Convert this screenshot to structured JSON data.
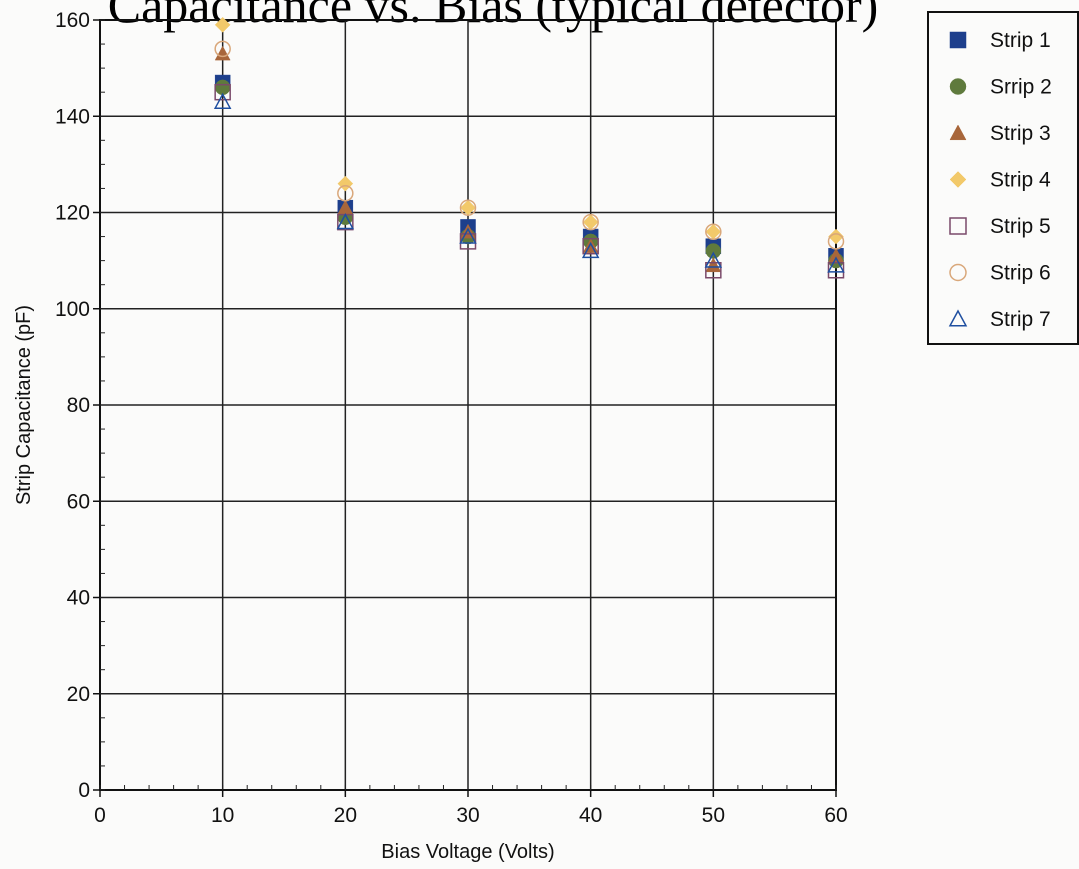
{
  "chart_data": {
    "type": "scatter",
    "title": "Capacitance vs. Bias (typical detector)",
    "xlabel": "Bias Voltage (Volts)",
    "ylabel": "Strip Capacitance (pF)",
    "xlim": [
      0,
      60
    ],
    "ylim": [
      0,
      160
    ],
    "xticks": [
      0,
      10,
      20,
      30,
      40,
      50,
      60
    ],
    "yticks": [
      0,
      20,
      40,
      60,
      80,
      100,
      120,
      140,
      160
    ],
    "grid": true,
    "legend_position": "top-right-outside",
    "x": [
      10,
      20,
      30,
      40,
      50,
      60
    ],
    "series": [
      {
        "name": "Strip 1",
        "marker": "square-filled",
        "color": "#1d3f8c",
        "values": [
          147,
          121,
          117,
          115,
          113,
          111
        ]
      },
      {
        "name": "Srrip 2",
        "marker": "circle-filled",
        "color": "#5f7a3d",
        "values": [
          146,
          119,
          115,
          114,
          112,
          110
        ]
      },
      {
        "name": "Strip 3",
        "marker": "triangle-filled",
        "color": "#a8663a",
        "values": [
          153,
          121,
          116,
          113,
          109,
          111
        ]
      },
      {
        "name": "Strip 4",
        "marker": "diamond-filled",
        "color": "#f2c96a",
        "values": [
          159,
          126,
          121,
          118,
          116,
          115
        ]
      },
      {
        "name": "Strip 5",
        "marker": "square-open",
        "color": "#7a4a6a",
        "values": [
          145,
          118,
          114,
          113,
          108,
          108
        ]
      },
      {
        "name": "Strip 6",
        "marker": "circle-open",
        "color": "#d9a77a",
        "values": [
          154,
          124,
          121,
          118,
          116,
          114
        ]
      },
      {
        "name": "Strip 7",
        "marker": "triangle-open",
        "color": "#1f4fa0",
        "values": [
          143,
          118,
          115,
          112,
          110,
          109
        ]
      }
    ]
  }
}
